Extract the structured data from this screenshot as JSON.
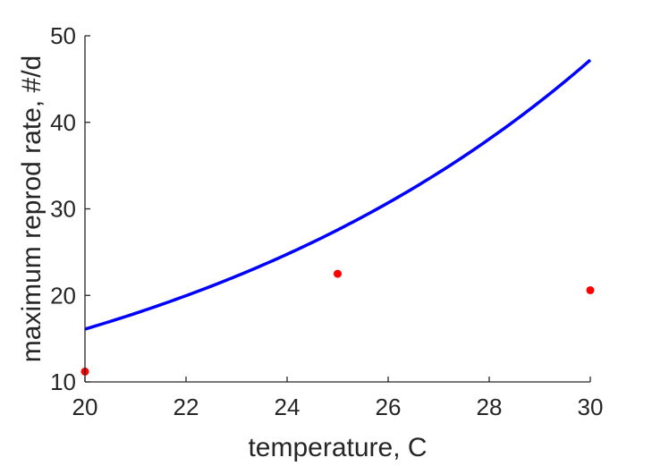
{
  "chart_data": {
    "type": "line",
    "xlabel": "temperature, C",
    "ylabel": "maximum reprod rate, #/d",
    "xlim": [
      20,
      30
    ],
    "ylim": [
      10,
      50
    ],
    "xticks": [
      "20",
      "22",
      "24",
      "26",
      "28",
      "30"
    ],
    "yticks": [
      "10",
      "20",
      "30",
      "40",
      "50"
    ],
    "grid": false,
    "series": [
      {
        "kind": "line",
        "color": "#0000ff",
        "x": [
          20,
          21,
          22,
          23,
          24,
          25,
          26,
          27,
          28,
          29,
          30
        ],
        "y": [
          16.1,
          17.9,
          19.9,
          22.2,
          24.8,
          27.7,
          30.9,
          34.5,
          38.4,
          42.6,
          47.2
        ]
      },
      {
        "kind": "scatter",
        "color": "#ff0000",
        "x": [
          20,
          25,
          30
        ],
        "y": [
          11.2,
          22.5,
          20.6
        ]
      }
    ]
  }
}
